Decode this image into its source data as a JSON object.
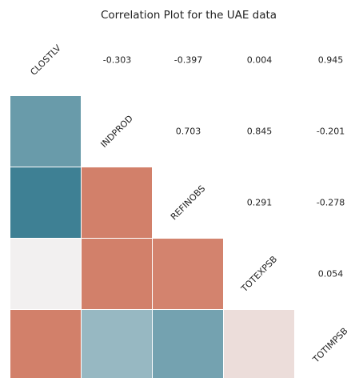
{
  "chart_data": {
    "type": "heatmap",
    "title": "Correlation Plot for the UAE data",
    "labels": [
      "CLOSTLV",
      "INDPROD",
      "REFINOBS",
      "TOTEXPSB",
      "TOTIMPSB"
    ],
    "rows": [
      [
        -0.303,
        -0.397,
        0.004,
        0.945
      ],
      [
        0.703,
        0.845,
        -0.201
      ],
      [
        0.291,
        -0.278
      ],
      [
        0.054
      ]
    ],
    "clim": [
      -0.4,
      0.3
    ],
    "colors": [
      "#3d7f93",
      "#f2f2f2",
      "#d2806a"
    ]
  }
}
